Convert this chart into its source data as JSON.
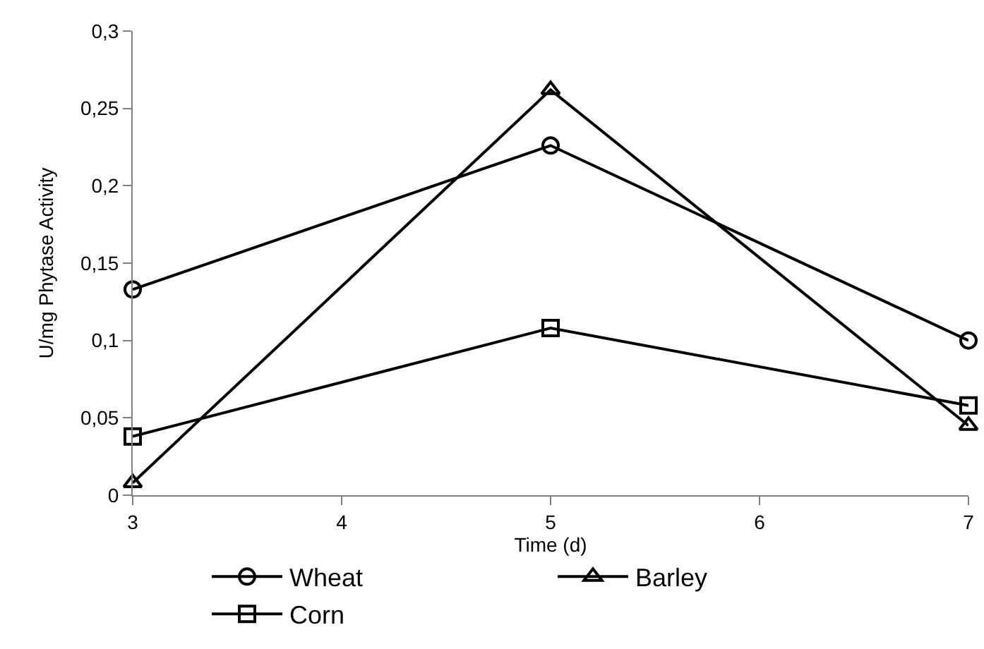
{
  "chart_data": {
    "type": "line",
    "xlabel": "Time (d)",
    "ylabel": "U/mg Phytase Activity",
    "x": [
      3,
      5,
      7
    ],
    "series": [
      {
        "name": "Wheat",
        "color": "#000000",
        "marker": "circle",
        "values": [
          0.133,
          0.226,
          0.1
        ]
      },
      {
        "name": "Barley",
        "color": "#000000",
        "marker": "triangle",
        "values": [
          0.008,
          0.262,
          0.045
        ]
      },
      {
        "name": "Corn",
        "color": "#000000",
        "marker": "square",
        "values": [
          0.038,
          0.108,
          0.058
        ]
      }
    ],
    "xlim": [
      3,
      7
    ],
    "xticks": [
      3,
      4,
      5,
      6,
      7
    ],
    "ylim": [
      0,
      0.3
    ],
    "yticks": [
      {
        "value": 0,
        "label": "0"
      },
      {
        "value": 0.05,
        "label": "0,05"
      },
      {
        "value": 0.1,
        "label": "0,1"
      },
      {
        "value": 0.15,
        "label": "0,15"
      },
      {
        "value": 0.2,
        "label": "0,2"
      },
      {
        "value": 0.25,
        "label": "0,25"
      },
      {
        "value": 0.3,
        "label": "0,3"
      }
    ],
    "legend": "bottom",
    "line_style": "solid"
  }
}
